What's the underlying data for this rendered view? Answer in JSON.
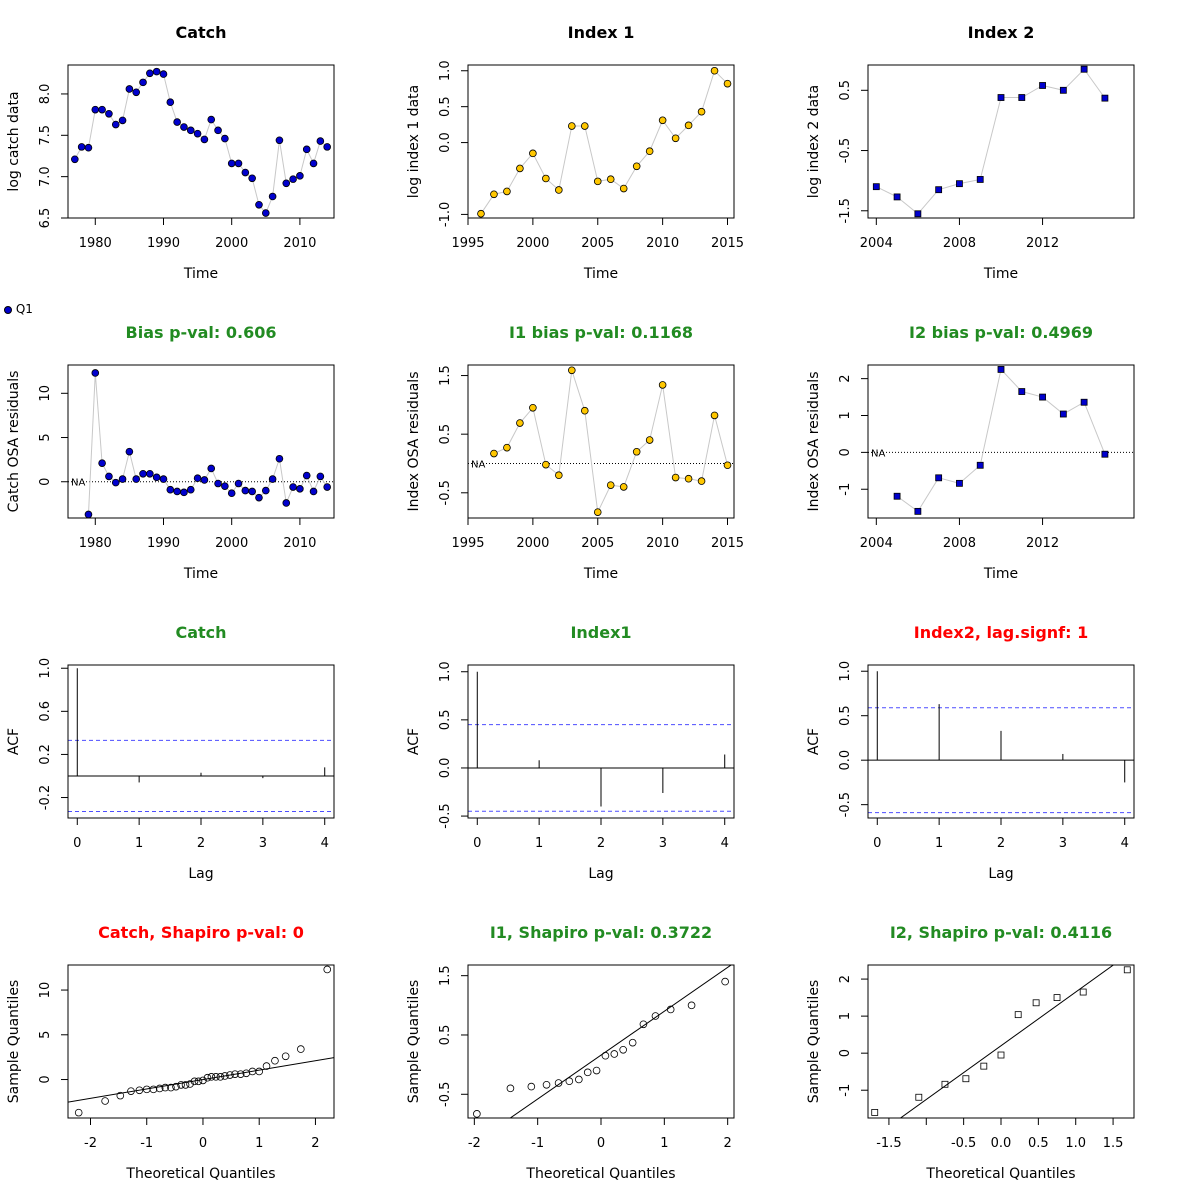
{
  "colors": {
    "catch_fill": "#0000CD",
    "index1_fill": "#FFC700",
    "index2_fill": "#0000CD",
    "title_green": "#228B22",
    "title_red": "#FF0000",
    "title_black": "#000000",
    "ci_line": "#4D4DFF",
    "connector": "#C8C8C8"
  },
  "legend": {
    "label": "Q1",
    "symbol": "filled-circle"
  },
  "chart_data": [
    {
      "type": "line",
      "title": "Catch",
      "title_color": "black",
      "xlabel": "Time",
      "ylabel": "log catch data",
      "xlim": [
        1976,
        2015
      ],
      "ylim": [
        6.5,
        8.35
      ],
      "xticks": [
        1980,
        1990,
        2000,
        2010
      ],
      "xtick_labels": [
        "1980",
        "1990",
        "2000",
        "2010"
      ],
      "yticks": [
        6.5,
        7.0,
        7.5,
        8.0
      ],
      "ytick_labels": [
        "6.5",
        "7.0",
        "7.5",
        "8.0"
      ],
      "marker": "circle",
      "fill": "catch",
      "x": [
        1977,
        1978,
        1979,
        1980,
        1981,
        1982,
        1983,
        1984,
        1985,
        1986,
        1987,
        1988,
        1989,
        1990,
        1991,
        1992,
        1993,
        1994,
        1995,
        1996,
        1997,
        1998,
        1999,
        2000,
        2001,
        2002,
        2003,
        2004,
        2005,
        2006,
        2007,
        2008,
        2009,
        2010,
        2011,
        2012,
        2013,
        2014
      ],
      "y": [
        7.21,
        7.36,
        7.35,
        7.81,
        7.81,
        7.76,
        7.63,
        7.68,
        8.06,
        8.02,
        8.14,
        8.25,
        8.27,
        8.24,
        7.9,
        7.66,
        7.6,
        7.56,
        7.52,
        7.45,
        7.69,
        7.56,
        7.46,
        7.16,
        7.16,
        7.05,
        6.98,
        6.66,
        6.56,
        6.76,
        7.44,
        6.92,
        6.97,
        7.01,
        7.33,
        7.16,
        7.43,
        7.36
      ]
    },
    {
      "type": "line",
      "title": "Index 1",
      "title_color": "black",
      "xlabel": "Time",
      "ylabel": "log index 1 data",
      "xlim": [
        1995,
        2015.5
      ],
      "ylim": [
        -1.05,
        1.08
      ],
      "xticks": [
        1995,
        2000,
        2005,
        2010,
        2015
      ],
      "xtick_labels": [
        "1995",
        "2000",
        "2005",
        "2010",
        "2015"
      ],
      "yticks": [
        -1.0,
        0.0,
        0.5,
        1.0
      ],
      "ytick_labels": [
        "-1.0",
        "0.0",
        "0.5",
        "1.0"
      ],
      "marker": "circle",
      "fill": "index1",
      "x": [
        1996,
        1997,
        1998,
        1999,
        2000,
        2001,
        2002,
        2003,
        2004,
        2005,
        2006,
        2007,
        2008,
        2009,
        2010,
        2011,
        2012,
        2013,
        2014,
        2015
      ],
      "y": [
        -0.99,
        -0.72,
        -0.68,
        -0.36,
        -0.15,
        -0.5,
        -0.66,
        0.23,
        0.23,
        -0.54,
        -0.51,
        -0.64,
        -0.33,
        -0.12,
        0.31,
        0.06,
        0.24,
        0.43,
        1.0,
        0.82
      ]
    },
    {
      "type": "line",
      "title": "Index 2",
      "title_color": "black",
      "xlabel": "Time",
      "ylabel": "log index 2 data",
      "xlim": [
        2003.6,
        2016.4
      ],
      "ylim": [
        -1.62,
        0.92
      ],
      "xticks": [
        2004,
        2008,
        2012
      ],
      "xtick_labels": [
        "2004",
        "2008",
        "2012"
      ],
      "yticks": [
        -1.5,
        -0.5,
        0.5
      ],
      "ytick_labels": [
        "-1.5",
        "-0.5",
        "0.5"
      ],
      "marker": "square",
      "fill": "index2",
      "x": [
        2004,
        2005,
        2006,
        2007,
        2008,
        2009,
        2010,
        2011,
        2012,
        2013,
        2014,
        2015
      ],
      "y": [
        -1.1,
        -1.27,
        -1.55,
        -1.15,
        -1.05,
        -0.98,
        0.38,
        0.38,
        0.58,
        0.5,
        0.85,
        0.37
      ]
    },
    {
      "type": "line",
      "title": "Bias p-val: 0.606",
      "title_color": "green",
      "xlabel": "Time",
      "ylabel": "Catch OSA residuals",
      "xlim": [
        1976,
        2015
      ],
      "ylim": [
        -4.1,
        13.2
      ],
      "xticks": [
        1980,
        1990,
        2000,
        2010
      ],
      "xtick_labels": [
        "1980",
        "1990",
        "2000",
        "2010"
      ],
      "yticks": [
        0,
        5,
        10
      ],
      "ytick_labels": [
        "0",
        "5",
        "10"
      ],
      "marker": "circle",
      "fill": "catch",
      "zero_line": true,
      "na_label": "NA",
      "x": [
        1979,
        1980,
        1981,
        1982,
        1983,
        1984,
        1985,
        1986,
        1987,
        1988,
        1989,
        1990,
        1991,
        1992,
        1993,
        1994,
        1995,
        1996,
        1997,
        1998,
        1999,
        2000,
        2001,
        2002,
        2003,
        2004,
        2005,
        2006,
        2007,
        2008,
        2009,
        2010,
        2011,
        2012,
        2013,
        2014
      ],
      "y": [
        -3.7,
        12.3,
        2.1,
        0.6,
        -0.1,
        0.3,
        3.4,
        0.3,
        0.9,
        0.9,
        0.5,
        0.3,
        -0.9,
        -1.1,
        -1.2,
        -0.9,
        0.4,
        0.2,
        1.5,
        -0.2,
        -0.5,
        -1.3,
        -0.2,
        -1.0,
        -1.1,
        -1.8,
        -1.0,
        0.3,
        2.6,
        -2.4,
        -0.6,
        -0.8,
        0.7,
        -1.1,
        0.6,
        -0.6
      ]
    },
    {
      "type": "line",
      "title": "I1 bias p-val: 0.1168",
      "title_color": "green",
      "xlabel": "Time",
      "ylabel": "Index OSA residuals",
      "xlim": [
        1995,
        2015.5
      ],
      "ylim": [
        -0.93,
        1.68
      ],
      "xticks": [
        1995,
        2000,
        2005,
        2010,
        2015
      ],
      "xtick_labels": [
        "1995",
        "2000",
        "2005",
        "2010",
        "2015"
      ],
      "yticks": [
        -0.5,
        0.5,
        1.5
      ],
      "ytick_labels": [
        "-0.5",
        "0.5",
        "1.5"
      ],
      "marker": "circle",
      "fill": "index1",
      "zero_line": true,
      "na_label": "NA",
      "x": [
        1997,
        1998,
        1999,
        2000,
        2001,
        2002,
        2003,
        2004,
        2005,
        2006,
        2007,
        2008,
        2009,
        2010,
        2011,
        2012,
        2013,
        2014,
        2015
      ],
      "y": [
        0.17,
        0.27,
        0.69,
        0.95,
        -0.02,
        -0.2,
        1.59,
        0.9,
        -0.83,
        -0.37,
        -0.4,
        0.2,
        0.4,
        1.34,
        -0.24,
        -0.26,
        -0.3,
        0.82,
        -0.03
      ]
    },
    {
      "type": "line",
      "title": "I2 bias p-val: 0.4969",
      "title_color": "green",
      "xlabel": "Time",
      "ylabel": "Index OSA residuals",
      "xlim": [
        2003.6,
        2016.4
      ],
      "ylim": [
        -1.78,
        2.37
      ],
      "xticks": [
        2004,
        2008,
        2012
      ],
      "xtick_labels": [
        "2004",
        "2008",
        "2012"
      ],
      "yticks": [
        -1,
        0,
        1,
        2
      ],
      "ytick_labels": [
        "-1",
        "0",
        "1",
        "2"
      ],
      "marker": "square",
      "fill": "index2",
      "zero_line": true,
      "na_label": "NA",
      "x": [
        2005,
        2006,
        2007,
        2008,
        2009,
        2010,
        2011,
        2012,
        2013,
        2014,
        2015
      ],
      "y": [
        -1.19,
        -1.6,
        -0.69,
        -0.84,
        -0.35,
        2.25,
        1.65,
        1.5,
        1.04,
        1.36,
        -0.05
      ]
    },
    {
      "type": "acf",
      "title": "Catch",
      "title_color": "green",
      "xlabel": "Lag",
      "ylabel": "ACF",
      "xlim": [
        -0.15,
        4.15
      ],
      "ylim": [
        -0.39,
        1.03
      ],
      "xticks": [
        0,
        1,
        2,
        3,
        4
      ],
      "xtick_labels": [
        "0",
        "1",
        "2",
        "3",
        "4"
      ],
      "yticks": [
        -0.2,
        0.2,
        0.6,
        1.0
      ],
      "ytick_labels": [
        "-0.2",
        "0.2",
        "0.6",
        "1.0"
      ],
      "lags": [
        0,
        1,
        2,
        3,
        4
      ],
      "acf": [
        1.0,
        -0.06,
        0.03,
        -0.02,
        0.08
      ],
      "ci": 0.33
    },
    {
      "type": "acf",
      "title": "Index1",
      "title_color": "green",
      "xlabel": "Lag",
      "ylabel": "ACF",
      "xlim": [
        -0.15,
        4.15
      ],
      "ylim": [
        -0.52,
        1.07
      ],
      "xticks": [
        0,
        1,
        2,
        3,
        4
      ],
      "xtick_labels": [
        "0",
        "1",
        "2",
        "3",
        "4"
      ],
      "yticks": [
        -0.5,
        0.0,
        0.5,
        1.0
      ],
      "ytick_labels": [
        "-0.5",
        "0.0",
        "0.5",
        "1.0"
      ],
      "lags": [
        0,
        1,
        2,
        3,
        4
      ],
      "acf": [
        1.0,
        0.08,
        -0.4,
        -0.26,
        0.14
      ],
      "ci": 0.45
    },
    {
      "type": "acf",
      "title": "Index2, lag.signf: 1",
      "title_color": "red",
      "xlabel": "Lag",
      "ylabel": "ACF",
      "xlim": [
        -0.15,
        4.15
      ],
      "ylim": [
        -0.65,
        1.07
      ],
      "xticks": [
        0,
        1,
        2,
        3,
        4
      ],
      "xtick_labels": [
        "0",
        "1",
        "2",
        "3",
        "4"
      ],
      "yticks": [
        -0.5,
        0.0,
        0.5,
        1.0
      ],
      "ytick_labels": [
        "-0.5",
        "0.0",
        "0.5",
        "1.0"
      ],
      "lags": [
        0,
        1,
        2,
        3,
        4
      ],
      "acf": [
        1.0,
        0.63,
        0.33,
        0.07,
        -0.25
      ],
      "ci": 0.59
    },
    {
      "type": "scatter",
      "title": "Catch, Shapiro p-val: 0",
      "title_color": "red",
      "xlabel": "Theoretical Quantiles",
      "ylabel": "Sample Quantiles",
      "xlim": [
        -2.4,
        2.33
      ],
      "ylim": [
        -4.3,
        12.8
      ],
      "xticks": [
        -2,
        -1,
        0,
        1,
        2
      ],
      "xtick_labels": [
        "-2",
        "-1",
        "0",
        "1",
        "2"
      ],
      "yticks": [
        0,
        5,
        10
      ],
      "ytick_labels": [
        "0",
        "5",
        "10"
      ],
      "marker": "open-circle",
      "qq_line": [
        0.0,
        1.05
      ],
      "x": [
        -2.21,
        -1.74,
        -1.47,
        -1.28,
        -1.13,
        -1.0,
        -0.88,
        -0.77,
        -0.67,
        -0.57,
        -0.48,
        -0.39,
        -0.31,
        -0.23,
        -0.15,
        -0.08,
        0.0,
        0.08,
        0.15,
        0.23,
        0.31,
        0.39,
        0.48,
        0.57,
        0.67,
        0.77,
        0.88,
        1.0,
        1.13,
        1.28,
        1.47,
        1.74,
        2.21
      ],
      "y": [
        -3.7,
        -2.4,
        -1.8,
        -1.3,
        -1.2,
        -1.1,
        -1.1,
        -1.0,
        -0.9,
        -0.9,
        -0.8,
        -0.6,
        -0.6,
        -0.5,
        -0.2,
        -0.2,
        -0.1,
        0.2,
        0.3,
        0.3,
        0.3,
        0.4,
        0.5,
        0.6,
        0.6,
        0.7,
        0.9,
        0.9,
        1.5,
        2.1,
        2.6,
        3.4,
        12.3
      ]
    },
    {
      "type": "scatter",
      "title": "I1, Shapiro p-val: 0.3722",
      "title_color": "green",
      "xlabel": "Theoretical Quantiles",
      "ylabel": "Sample Quantiles",
      "xlim": [
        -2.1,
        2.1
      ],
      "ylim": [
        -0.9,
        1.68
      ],
      "xticks": [
        -2,
        -1,
        0,
        1,
        2
      ],
      "xtick_labels": [
        "-2",
        "-1",
        "0",
        "1",
        "2"
      ],
      "yticks": [
        -0.5,
        0.5,
        1.5
      ],
      "ytick_labels": [
        "-0.5",
        "0.5",
        "1.5"
      ],
      "marker": "open-circle",
      "qq_line": [
        0.16,
        0.74
      ],
      "x": [
        -1.96,
        -1.43,
        -1.1,
        -0.86,
        -0.67,
        -0.5,
        -0.35,
        -0.21,
        -0.07,
        0.07,
        0.21,
        0.35,
        0.5,
        0.67,
        0.86,
        1.1,
        1.43,
        1.96
      ],
      "y": [
        -0.83,
        -0.4,
        -0.37,
        -0.34,
        -0.31,
        -0.28,
        -0.25,
        -0.13,
        -0.1,
        0.15,
        0.18,
        0.25,
        0.37,
        0.68,
        0.82,
        0.93,
        1.0,
        1.4
      ]
    },
    {
      "type": "scatter",
      "title": "I2, Shapiro p-val: 0.4116",
      "title_color": "green",
      "xlabel": "Theoretical Quantiles",
      "ylabel": "Sample Quantiles",
      "xlim": [
        -1.78,
        1.78
      ],
      "ylim": [
        -1.75,
        2.38
      ],
      "xticks": [
        -1.5,
        -0.5,
        0.0,
        0.5,
        1.0,
        1.5
      ],
      "xtick_labels": [
        "-1.5",
        "-0.5",
        "0.0",
        "0.5",
        "1.0",
        "1.5"
      ],
      "xtick_extra": [
        -1.0
      ],
      "yticks": [
        -1,
        0,
        1,
        2
      ],
      "ytick_labels": [
        "-1",
        "0",
        "1",
        "2"
      ],
      "marker": "open-square",
      "qq_line": [
        0.2,
        1.45
      ],
      "x": [
        -1.69,
        -1.1,
        -0.75,
        -0.47,
        -0.23,
        0.0,
        0.23,
        0.47,
        0.75,
        1.1,
        1.69
      ],
      "y": [
        -1.6,
        -1.19,
        -0.84,
        -0.69,
        -0.35,
        -0.05,
        1.04,
        1.36,
        1.5,
        1.65,
        2.25
      ]
    }
  ]
}
